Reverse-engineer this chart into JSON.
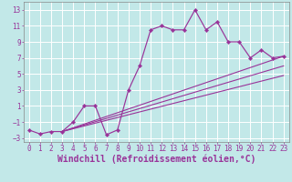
{
  "title": "",
  "xlabel": "Windchill (Refroidissement éolien,°C)",
  "ylabel": "",
  "bg_color": "#c2e8e8",
  "grid_color": "#ffffff",
  "line_color": "#993399",
  "marker_color": "#993399",
  "xlim": [
    -0.5,
    23.5
  ],
  "ylim": [
    -3.5,
    14.0
  ],
  "xticks": [
    0,
    1,
    2,
    3,
    4,
    5,
    6,
    7,
    8,
    9,
    10,
    11,
    12,
    13,
    14,
    15,
    16,
    17,
    18,
    19,
    20,
    21,
    22,
    23
  ],
  "yticks": [
    -3,
    -1,
    1,
    3,
    5,
    7,
    9,
    11,
    13
  ],
  "main_x": [
    0,
    1,
    2,
    3,
    4,
    5,
    6,
    7,
    8,
    9,
    10,
    11,
    12,
    13,
    14,
    15,
    16,
    17,
    18,
    19,
    20,
    21,
    22,
    23
  ],
  "main_y": [
    -2.0,
    -2.5,
    -2.2,
    -2.2,
    -1.0,
    1.0,
    1.0,
    -2.6,
    -2.0,
    3.0,
    6.0,
    10.5,
    11.0,
    10.5,
    10.5,
    13.0,
    10.5,
    11.5,
    9.0,
    9.0,
    7.0,
    8.0,
    7.0,
    7.2
  ],
  "line1_x": [
    3,
    23
  ],
  "line1_y": [
    -2.2,
    7.2
  ],
  "line2_x": [
    3,
    23
  ],
  "line2_y": [
    -2.2,
    6.0
  ],
  "line3_x": [
    3,
    23
  ],
  "line3_y": [
    -2.2,
    4.8
  ],
  "tick_fontsize": 5.5,
  "xlabel_fontsize": 7.0
}
